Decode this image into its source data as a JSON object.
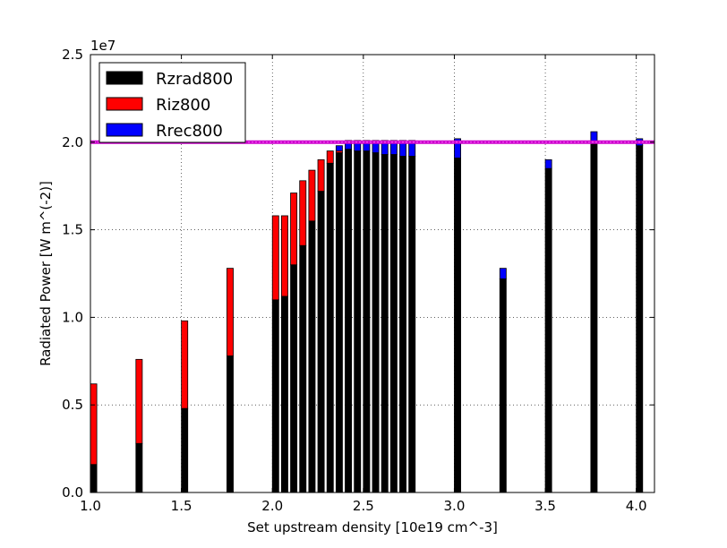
{
  "chart_data": {
    "type": "bar",
    "stacked": true,
    "xlabel": "Set upstream density [10e19 cm^-3]",
    "ylabel": "Radiated Power [W m^(-2)]",
    "y_offset_label": "1e7",
    "xlim": [
      1.0,
      4.1
    ],
    "ylim": [
      0,
      25000000
    ],
    "x_ticks": [
      1.0,
      1.5,
      2.0,
      2.5,
      3.0,
      3.5,
      4.0
    ],
    "x_tick_labels": [
      "1.0",
      "1.5",
      "2.0",
      "2.5",
      "3.0",
      "3.5",
      "4.0"
    ],
    "y_ticks": [
      0,
      5000000,
      10000000,
      15000000,
      20000000,
      25000000
    ],
    "y_tick_labels": [
      "0.0",
      "0.5",
      "1.0",
      "1.5",
      "2.0",
      "2.5"
    ],
    "grid": true,
    "legend_position": "top-left",
    "bar_width": 0.035,
    "reference_line": {
      "y": 20000000,
      "color": "#cc00cc"
    },
    "x": [
      1.0,
      1.25,
      1.5,
      1.75,
      2.0,
      2.05,
      2.1,
      2.15,
      2.2,
      2.25,
      2.3,
      2.35,
      2.4,
      2.45,
      2.5,
      2.55,
      2.6,
      2.65,
      2.7,
      2.75,
      3.0,
      3.25,
      3.5,
      3.75,
      4.0
    ],
    "series": [
      {
        "name": "Rzrad800",
        "color": "#000000",
        "values": [
          1600000,
          2800000,
          4800000,
          7800000,
          11000000,
          11200000,
          13000000,
          14100000,
          15500000,
          17200000,
          18800000,
          19400000,
          19600000,
          19500000,
          19500000,
          19400000,
          19300000,
          19300000,
          19200000,
          19200000,
          19100000,
          12200000,
          18500000,
          20000000,
          19800000
        ]
      },
      {
        "name": "Riz800",
        "color": "#ff0000",
        "values": [
          4600000,
          4800000,
          5000000,
          5000000,
          4800000,
          4600000,
          4100000,
          3700000,
          2900000,
          1800000,
          700000,
          100000,
          0,
          0,
          0,
          0,
          0,
          0,
          0,
          0,
          0,
          0,
          0,
          0,
          0
        ]
      },
      {
        "name": "Rrec800",
        "color": "#0000ff",
        "values": [
          0,
          0,
          0,
          0,
          0,
          0,
          0,
          0,
          0,
          0,
          0,
          300000,
          500000,
          600000,
          600000,
          700000,
          800000,
          800000,
          900000,
          900000,
          1100000,
          600000,
          500000,
          600000,
          400000
        ]
      }
    ]
  }
}
